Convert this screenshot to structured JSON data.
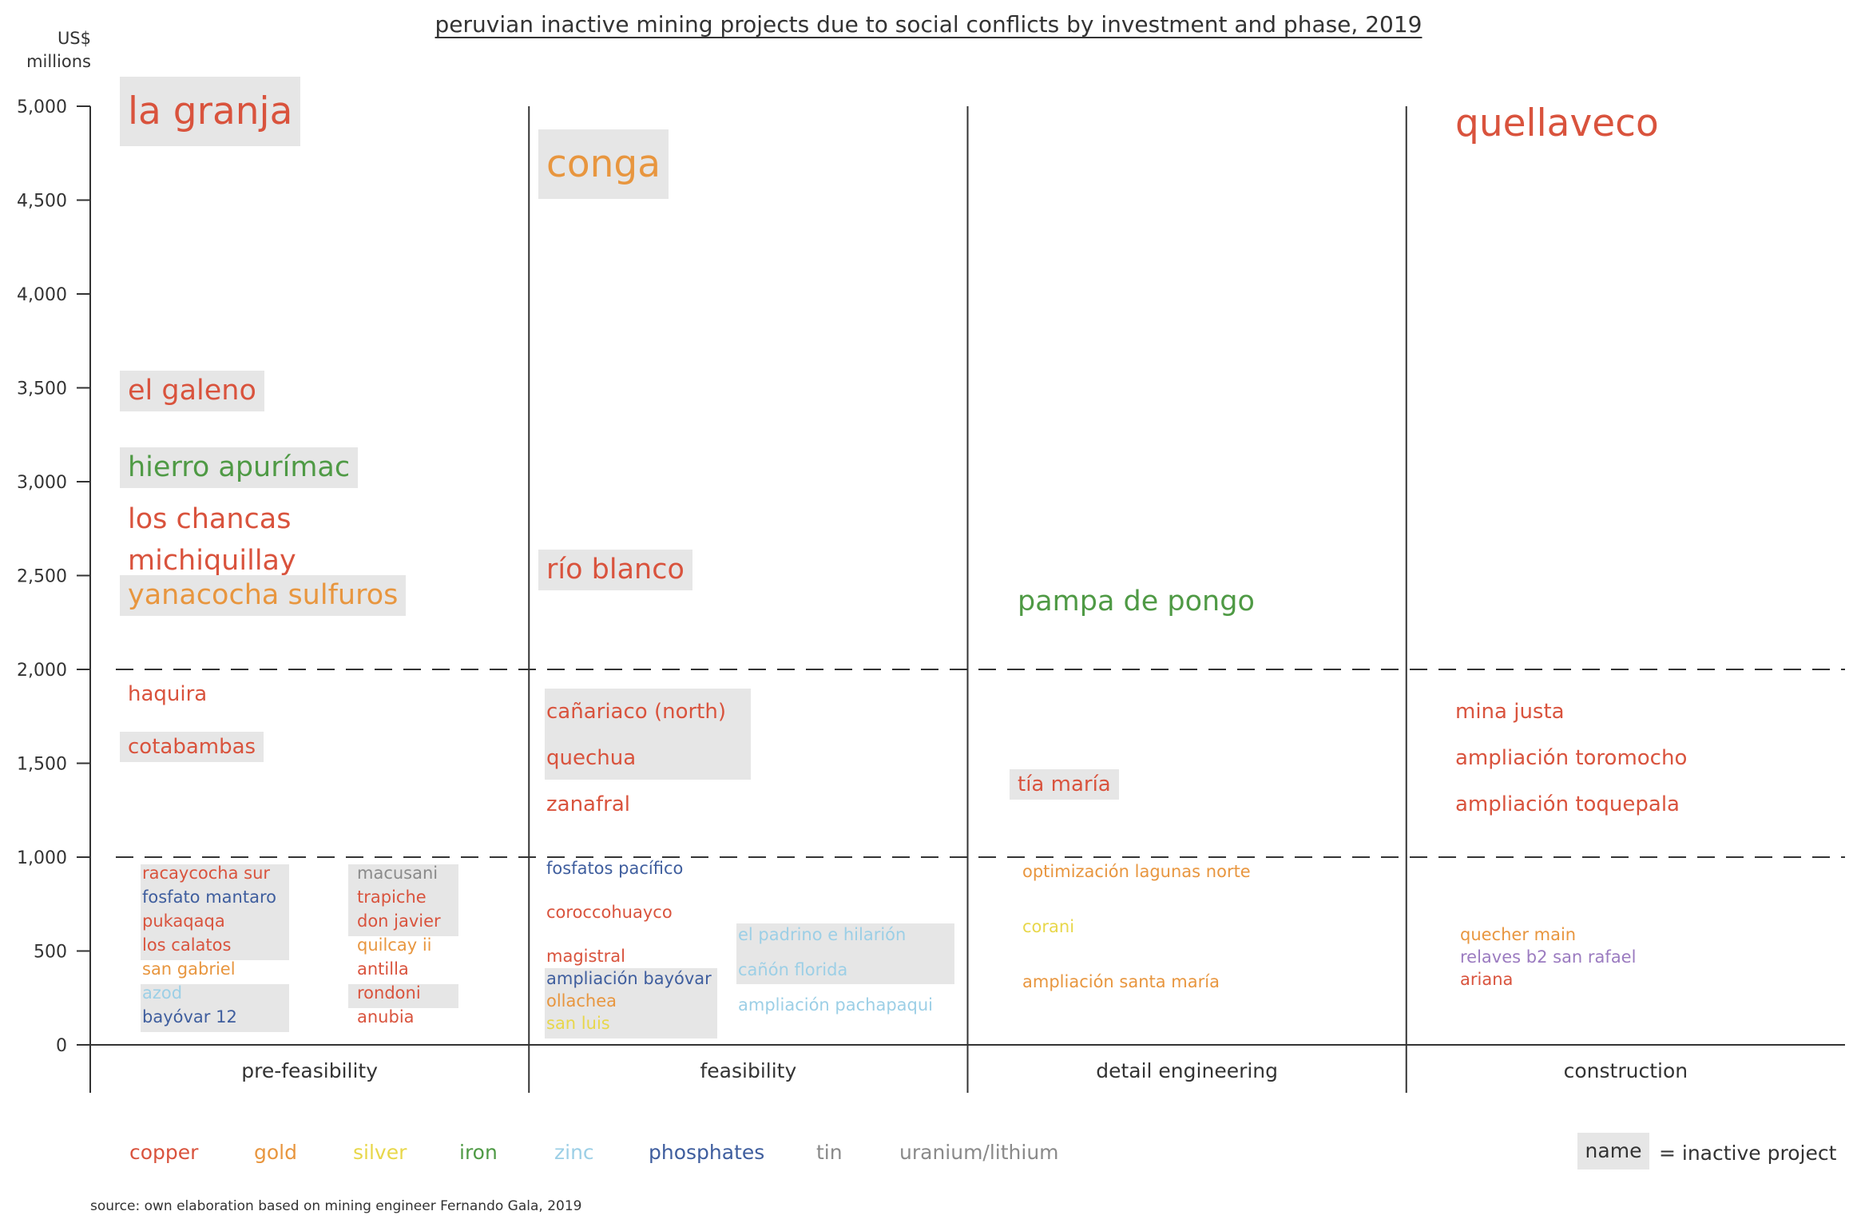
{
  "chart_data": {
    "type": "scatter",
    "title": "peruvian inactive mining projects due to social conflicts by investment and phase, 2019",
    "ylabel": "US$ millions",
    "ylim": [
      0,
      5000
    ],
    "yticks": [
      0,
      500,
      1000,
      1500,
      2000,
      2500,
      3000,
      3500,
      4000,
      4500,
      5000
    ],
    "ytick_labels": [
      "0",
      "500",
      "1,000",
      "1,500",
      "2,000",
      "2,500",
      "3,000",
      "3,500",
      "4,000",
      "4,500",
      "5,000"
    ],
    "reference_lines": [
      1000,
      2000
    ],
    "categories": [
      "pre-feasibility",
      "feasibility",
      "detail engineering",
      "construction"
    ],
    "minerals": [
      {
        "name": "copper",
        "color": "#d9533d"
      },
      {
        "name": "gold",
        "color": "#e8963f"
      },
      {
        "name": "silver",
        "color": "#e8d74a"
      },
      {
        "name": "iron",
        "color": "#4f9a45"
      },
      {
        "name": "zinc",
        "color": "#9ccfe6"
      },
      {
        "name": "phosphates",
        "color": "#3f5e9e"
      },
      {
        "name": "tin",
        "color": "#8a8a8a"
      },
      {
        "name": "uranium/lithium",
        "color": "#9b7bc0"
      }
    ],
    "legend_colors": {
      "uranium_lithium": "#8a8a8a"
    },
    "projects": [
      {
        "name": "la granja",
        "phase": 0,
        "value": 5000,
        "mineral": "copper",
        "inactive": true
      },
      {
        "name": "el galeno",
        "phase": 0,
        "value": 3500,
        "mineral": "copper",
        "inactive": true
      },
      {
        "name": "hierro apurímac",
        "phase": 0,
        "value": 3000,
        "mineral": "iron",
        "inactive": true
      },
      {
        "name": "los chancas",
        "phase": 0,
        "value": 2800,
        "mineral": "copper",
        "inactive": false
      },
      {
        "name": "michiquillay",
        "phase": 0,
        "value": 2500,
        "mineral": "copper",
        "inactive": false
      },
      {
        "name": "yanacocha sulfuros",
        "phase": 0,
        "value": 2300,
        "mineral": "gold",
        "inactive": true
      },
      {
        "name": "haquira",
        "phase": 0,
        "value": 1860,
        "mineral": "copper",
        "inactive": false
      },
      {
        "name": "cotabambas",
        "phase": 0,
        "value": 1500,
        "mineral": "copper",
        "inactive": true
      },
      {
        "name": "racaycocha sur",
        "phase": 0,
        "value": 900,
        "mineral": "copper",
        "inactive": true
      },
      {
        "name": "fosfato mantaro",
        "phase": 0,
        "value": 775,
        "mineral": "phosphates",
        "inactive": true
      },
      {
        "name": "pukaqaqa",
        "phase": 0,
        "value": 650,
        "mineral": "copper",
        "inactive": true
      },
      {
        "name": "los calatos",
        "phase": 0,
        "value": 525,
        "mineral": "copper",
        "inactive": true
      },
      {
        "name": "san gabriel",
        "phase": 0,
        "value": 400,
        "mineral": "gold",
        "inactive": false
      },
      {
        "name": "azod",
        "phase": 0,
        "value": 270,
        "mineral": "zinc",
        "inactive": true
      },
      {
        "name": "bayóvar 12",
        "phase": 0,
        "value": 145,
        "mineral": "phosphates",
        "inactive": true
      },
      {
        "name": "macusani",
        "phase": 0,
        "value": 900,
        "mineral": "tin",
        "inactive": true
      },
      {
        "name": "trapiche",
        "phase": 0,
        "value": 775,
        "mineral": "copper",
        "inactive": true
      },
      {
        "name": "don javier",
        "phase": 0,
        "value": 650,
        "mineral": "copper",
        "inactive": true
      },
      {
        "name": "quilcay ii",
        "phase": 0,
        "value": 525,
        "mineral": "gold",
        "inactive": false
      },
      {
        "name": "antilla",
        "phase": 0,
        "value": 400,
        "mineral": "copper",
        "inactive": false
      },
      {
        "name": "rondoni",
        "phase": 0,
        "value": 270,
        "mineral": "copper",
        "inactive": true
      },
      {
        "name": "anubia",
        "phase": 0,
        "value": 145,
        "mineral": "copper",
        "inactive": false
      },
      {
        "name": "conga",
        "phase": 1,
        "value": 4800,
        "mineral": "gold",
        "inactive": true
      },
      {
        "name": "río blanco",
        "phase": 1,
        "value": 2500,
        "mineral": "copper",
        "inactive": true
      },
      {
        "name": "cañariaco (north)",
        "phase": 1,
        "value": 1700,
        "mineral": "copper",
        "inactive": true
      },
      {
        "name": "quechua",
        "phase": 1,
        "value": 1500,
        "mineral": "copper",
        "inactive": true
      },
      {
        "name": "zanafral",
        "phase": 1,
        "value": 1300,
        "mineral": "copper",
        "inactive": false
      },
      {
        "name": "fosfatos pacífico",
        "phase": 1,
        "value": 950,
        "mineral": "phosphates",
        "inactive": false
      },
      {
        "name": "coroccohuayco",
        "phase": 1,
        "value": 700,
        "mineral": "copper",
        "inactive": false
      },
      {
        "name": "magistral",
        "phase": 1,
        "value": 470,
        "mineral": "copper",
        "inactive": false
      },
      {
        "name": "ampliación bayóvar",
        "phase": 1,
        "value": 350,
        "mineral": "phosphates",
        "inactive": true
      },
      {
        "name": "ollachea",
        "phase": 1,
        "value": 230,
        "mineral": "gold",
        "inactive": true
      },
      {
        "name": "san luis",
        "phase": 1,
        "value": 110,
        "mineral": "silver",
        "inactive": true
      },
      {
        "name": "el padrino e hilarión",
        "phase": 1,
        "value": 590,
        "mineral": "zinc",
        "inactive": true
      },
      {
        "name": "cañón florida",
        "phase": 1,
        "value": 400,
        "mineral": "zinc",
        "inactive": true
      },
      {
        "name": "ampliación pachapaqui",
        "phase": 1,
        "value": 210,
        "mineral": "zinc",
        "inactive": false
      },
      {
        "name": "pampa de pongo",
        "phase": 2,
        "value": 2300,
        "mineral": "iron",
        "inactive": false
      },
      {
        "name": "tía maría",
        "phase": 2,
        "value": 1400,
        "mineral": "copper",
        "inactive": true
      },
      {
        "name": "optimización lagunas norte",
        "phase": 2,
        "value": 930,
        "mineral": "gold",
        "inactive": false
      },
      {
        "name": "corani",
        "phase": 2,
        "value": 630,
        "mineral": "silver",
        "inactive": false
      },
      {
        "name": "ampliación santa maría",
        "phase": 2,
        "value": 340,
        "mineral": "gold",
        "inactive": false
      },
      {
        "name": "quellaveco",
        "phase": 3,
        "value": 5000,
        "mineral": "copper",
        "inactive": false
      },
      {
        "name": "mina justa",
        "phase": 3,
        "value": 1700,
        "mineral": "copper",
        "inactive": false
      },
      {
        "name": "ampliación toromocho",
        "phase": 3,
        "value": 1500,
        "mineral": "copper",
        "inactive": false
      },
      {
        "name": "ampliación toquepala",
        "phase": 3,
        "value": 1300,
        "mineral": "copper",
        "inactive": false
      },
      {
        "name": "quecher main",
        "phase": 3,
        "value": 590,
        "mineral": "gold",
        "inactive": false
      },
      {
        "name": "relaves b2 san rafael",
        "phase": 3,
        "value": 470,
        "mineral": "uranium/lithium",
        "inactive": false
      },
      {
        "name": "ariana",
        "phase": 3,
        "value": 350,
        "mineral": "copper",
        "inactive": false
      }
    ]
  },
  "legend_key": {
    "name_label": "name",
    "description": "= inactive project"
  },
  "source": "source: own elaboration based on mining engineer Fernando Gala, 2019"
}
